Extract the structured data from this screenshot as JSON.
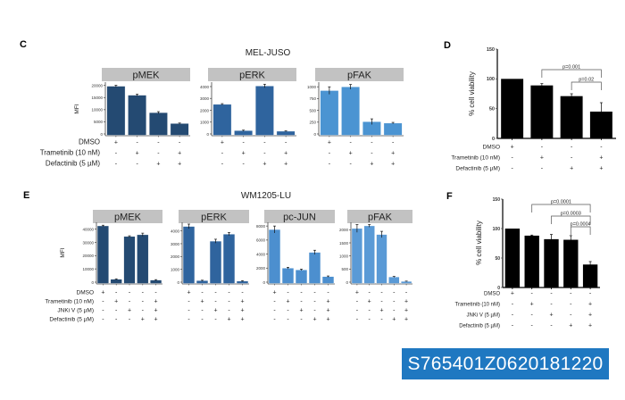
{
  "figure": {
    "C": {
      "letter": "C",
      "title": "MEL-JUSO",
      "ylabel": "MFI",
      "row_labels": [
        "DMSO",
        "Trametinib (10 nM)",
        "Defactinib (5 µM)"
      ],
      "treatments": [
        [
          "+",
          "-",
          "-",
          "-"
        ],
        [
          "-",
          "+",
          "-",
          "+"
        ],
        [
          "-",
          "-",
          "+",
          "+"
        ]
      ]
    },
    "D": {
      "letter": "D",
      "ylabel": "% cell viability",
      "row_labels": [
        "DMSO",
        "Trametinib (10 nM)",
        "Defactinib (5 µM)"
      ],
      "treatments": [
        [
          "+",
          "-",
          "-",
          "-"
        ],
        [
          "-",
          "+",
          "-",
          "+"
        ],
        [
          "-",
          "-",
          "+",
          "+"
        ]
      ]
    },
    "E": {
      "letter": "E",
      "title": "WM1205-LU",
      "ylabel": "MFI",
      "row_labels": [
        "DMSO",
        "Trametinib (10 nM)",
        "JNKi V (5 µM)",
        "Defactinib (5 µM)"
      ],
      "treatments": [
        [
          "+",
          "-",
          "-",
          "-",
          "-"
        ],
        [
          "-",
          "+",
          "-",
          "-",
          "+"
        ],
        [
          "-",
          "-",
          "+",
          "-",
          "+"
        ],
        [
          "-",
          "-",
          "-",
          "+",
          "+"
        ]
      ]
    },
    "F": {
      "letter": "F",
      "ylabel": "% cell viability",
      "row_labels": [
        "DMSO",
        "Trametinib (10 nM)",
        "JNKi V (5 µM)",
        "Defactinib (5 µM)"
      ],
      "treatments": [
        [
          "+",
          "-",
          "-",
          "-",
          "-"
        ],
        [
          "-",
          "+",
          "-",
          "-",
          "+"
        ],
        [
          "-",
          "-",
          "+",
          "-",
          "+"
        ],
        [
          "-",
          "-",
          "-",
          "+",
          "+"
        ]
      ]
    }
  },
  "catalog_id": "S765401Z0620181220",
  "chart_data": [
    {
      "id": "C_pMEK",
      "type": "bar",
      "title": "pMEK",
      "ylabel": "MFI",
      "values": [
        19700,
        16000,
        8800,
        4300
      ],
      "errors": [
        400,
        400,
        400,
        200
      ],
      "yticks": [
        "0",
        "5000",
        "10000",
        "15000",
        "20000"
      ],
      "ylim": [
        0,
        21000
      ],
      "color": "#244a72"
    },
    {
      "id": "C_pERK",
      "type": "bar",
      "title": "pERK",
      "values": [
        2500,
        280,
        4050,
        230
      ],
      "errors": [
        60,
        40,
        150,
        30
      ],
      "yticks": [
        "0",
        "1000",
        "2000",
        "3000",
        "4000"
      ],
      "ylim": [
        0,
        4300
      ],
      "color": "#2f649e"
    },
    {
      "id": "C_pFAK",
      "type": "bar",
      "title": "pFAK",
      "values": [
        920,
        1000,
        260,
        230
      ],
      "errors": [
        80,
        50,
        60,
        15
      ],
      "yticks": [
        "0",
        "250",
        "500",
        "750",
        "1000"
      ],
      "ylim": [
        0,
        1080
      ],
      "color": "#4b94d2"
    },
    {
      "id": "E_pMEK",
      "type": "bar",
      "title": "pMEK",
      "ylabel": "MFI",
      "values": [
        42500,
        2200,
        34500,
        35800,
        1600
      ],
      "errors": [
        500,
        300,
        500,
        1200,
        300
      ],
      "yticks": [
        "0",
        "10000",
        "20000",
        "30000",
        "40000"
      ],
      "ylim": [
        0,
        44500
      ],
      "color": "#244a72"
    },
    {
      "id": "E_pERK",
      "type": "bar",
      "title": "pERK",
      "values": [
        4350,
        120,
        3200,
        3750,
        80
      ],
      "errors": [
        180,
        30,
        150,
        120,
        30
      ],
      "yticks": [
        "0",
        "1000",
        "2000",
        "3000",
        "4000"
      ],
      "ylim": [
        0,
        4600
      ],
      "color": "#2f649e"
    },
    {
      "id": "E_pcJUN",
      "type": "bar",
      "title": "pc-JUN",
      "values": [
        7500,
        2000,
        1750,
        4250,
        800
      ],
      "errors": [
        500,
        120,
        100,
        300,
        80
      ],
      "yticks": [
        "0",
        "2000",
        "4000",
        "6000",
        "8000"
      ],
      "ylim": [
        0,
        8400
      ],
      "color": "#4c8fcf"
    },
    {
      "id": "E_pFAK",
      "type": "bar",
      "title": "pFAK",
      "values": [
        2050,
        2150,
        1820,
        200,
        30
      ],
      "errors": [
        150,
        50,
        120,
        20,
        10
      ],
      "yticks": [
        "0",
        "500",
        "1000",
        "1500",
        "2000"
      ],
      "ylim": [
        0,
        2250
      ],
      "color": "#5a9ad6"
    },
    {
      "id": "D",
      "type": "bar",
      "ylabel": "% cell viability",
      "values": [
        100,
        89,
        71,
        45
      ],
      "errors": [
        0,
        3,
        4,
        15
      ],
      "yticks": [
        "0",
        "50",
        "100",
        "150"
      ],
      "ylim": [
        0,
        150
      ],
      "color": "#000000",
      "comparisons": [
        {
          "a": 2,
          "b": 4,
          "label": "p=0.001"
        },
        {
          "a": 3,
          "b": 4,
          "label": "p=0.02"
        }
      ]
    },
    {
      "id": "F",
      "type": "bar",
      "ylabel": "% cell viability",
      "values": [
        100,
        88,
        82,
        81,
        39
      ],
      "errors": [
        0,
        1,
        8,
        7,
        5
      ],
      "yticks": [
        "0",
        "50",
        "100",
        "150"
      ],
      "ylim": [
        0,
        150
      ],
      "color": "#000000",
      "comparisons": [
        {
          "a": 2,
          "b": 5,
          "label": "p=0.0001"
        },
        {
          "a": 3,
          "b": 5,
          "label": "p=0.0003"
        },
        {
          "a": 4,
          "b": 5,
          "label": "p=0.0004"
        }
      ]
    }
  ]
}
